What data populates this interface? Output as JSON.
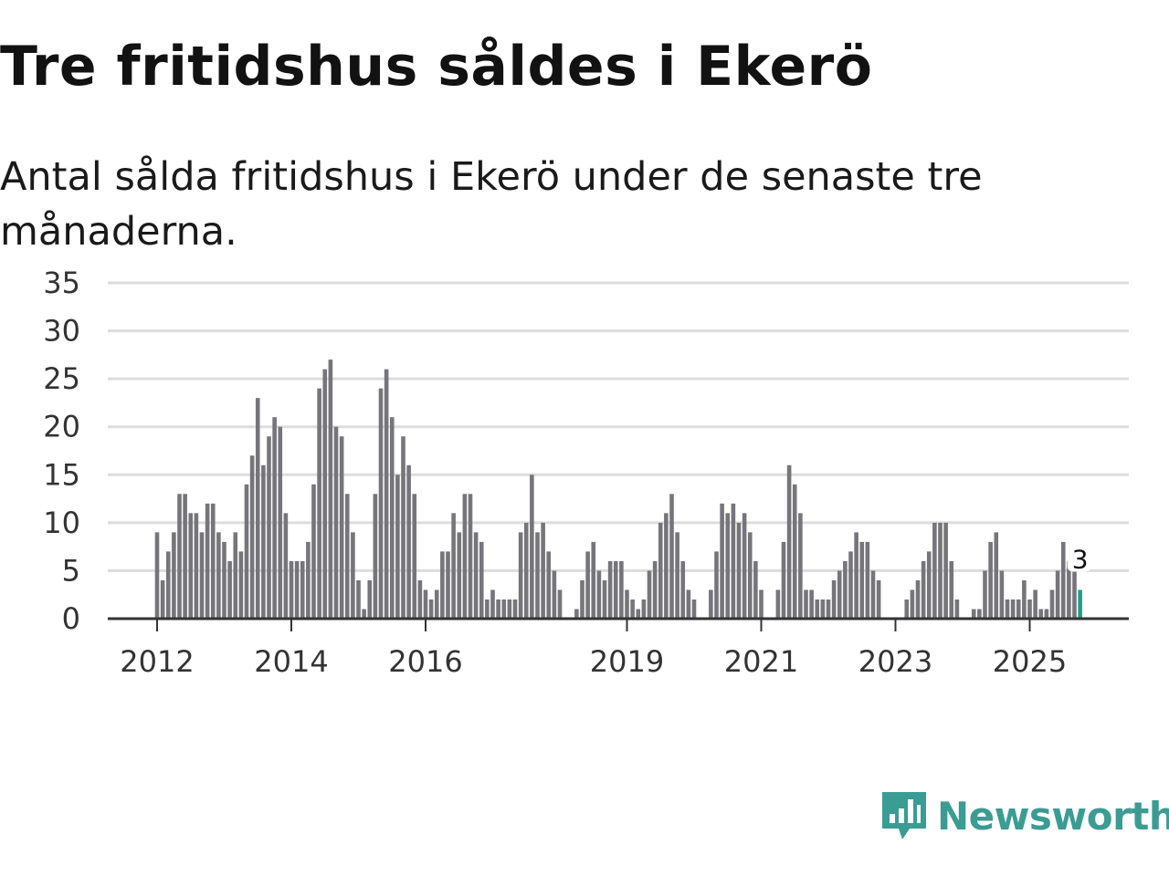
{
  "title": "Tre fritidshus såldes i Ekerö",
  "subtitle": "Antal sålda fritidshus i Ekerö under de senaste tre månaderna.",
  "brand": {
    "name": "Newsworthy",
    "icon": "newsworthy-logo-icon",
    "color": "#3a9c93"
  },
  "colors": {
    "bar": "#76757a",
    "highlight": "#1f9e8c",
    "grid": "#dddddd",
    "axis": "#333333"
  },
  "chart_data": {
    "type": "bar",
    "title": "Tre fritidshus såldes i Ekerö",
    "xlabel": "",
    "ylabel": "",
    "ylim": [
      0,
      35
    ],
    "yticks": [
      0,
      5,
      10,
      15,
      20,
      25,
      30,
      35
    ],
    "x_start": "2012-01",
    "x_ticks": [
      {
        "label": "2012",
        "year": 2012
      },
      {
        "label": "2014",
        "year": 2014
      },
      {
        "label": "2016",
        "year": 2016
      },
      {
        "label": "2019",
        "year": 2019
      },
      {
        "label": "2021",
        "year": 2021
      },
      {
        "label": "2023",
        "year": 2023
      },
      {
        "label": "2025",
        "year": 2025
      }
    ],
    "values": [
      9,
      4,
      7,
      9,
      13,
      13,
      11,
      11,
      9,
      12,
      12,
      9,
      8,
      6,
      9,
      7,
      14,
      17,
      23,
      16,
      19,
      21,
      20,
      11,
      6,
      6,
      6,
      8,
      14,
      24,
      26,
      27,
      20,
      19,
      13,
      9,
      4,
      1,
      4,
      13,
      24,
      26,
      21,
      15,
      19,
      16,
      13,
      4,
      3,
      2,
      3,
      7,
      7,
      11,
      9,
      13,
      13,
      9,
      8,
      2,
      3,
      2,
      2,
      2,
      2,
      9,
      10,
      15,
      9,
      10,
      7,
      5,
      3,
      0,
      0,
      1,
      4,
      7,
      8,
      5,
      4,
      6,
      6,
      6,
      3,
      2,
      1,
      2,
      5,
      6,
      10,
      11,
      13,
      9,
      6,
      3,
      2,
      0,
      0,
      3,
      7,
      12,
      11,
      12,
      10,
      11,
      9,
      6,
      3,
      0,
      0,
      3,
      8,
      16,
      14,
      11,
      3,
      3,
      2,
      2,
      2,
      4,
      5,
      6,
      7,
      9,
      8,
      8,
      5,
      4,
      0,
      0,
      0,
      0,
      2,
      3,
      4,
      6,
      7,
      10,
      10,
      10,
      6,
      2,
      0,
      0,
      1,
      1,
      5,
      8,
      9,
      5,
      2,
      2,
      2,
      4,
      2,
      3,
      1,
      1,
      3,
      5,
      8,
      6,
      5,
      3
    ],
    "highlight": {
      "label": "3",
      "value": 3,
      "index": 165
    }
  }
}
